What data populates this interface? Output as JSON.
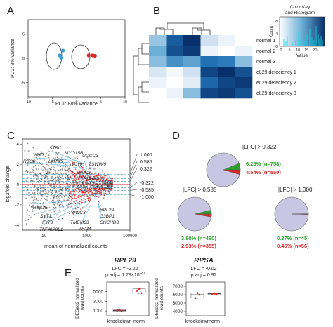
{
  "panels": {
    "a": "A",
    "b": "B",
    "c": "C",
    "d": "D",
    "e": "E"
  },
  "panel_a": {
    "xlabel": "PC1: 88% variance",
    "ylabel": "PC2: 8% variance",
    "xticks": [
      "-10",
      "-5",
      "0",
      "5",
      "10"
    ],
    "yticks": [
      "5",
      "0",
      "-5"
    ],
    "colors": {
      "blue": "#3b9ed6",
      "red": "#d62728"
    },
    "chart_data": {
      "type": "scatter",
      "xlabel": "PC1: 88% variance",
      "ylabel": "PC2: 8% variance",
      "xlim": [
        -10,
        10
      ],
      "ylim": [
        -8,
        8
      ],
      "series": [
        {
          "points": [
            [
              -3.5,
              0.6
            ],
            [
              -2.8,
              1.6
            ],
            [
              -3.2,
              0.1
            ]
          ],
          "color": "#3b9ed6"
        },
        {
          "points": [
            [
              2.5,
              0.6
            ],
            [
              3.3,
              0.6
            ],
            [
              3.8,
              0.5
            ]
          ],
          "color": "#d62728"
        }
      ]
    }
  },
  "panel_b": {
    "row_labels": [
      "normal 1",
      "normal 2",
      "normal 3",
      "eL29 defeciency 1",
      "eL29 defeciency 2",
      "eL29 defeciency 3"
    ],
    "color_key": {
      "title_line1": "Color Key",
      "title_line2": "and Histogram",
      "ylabel": "Count",
      "xlabel": "Value",
      "xticks": [
        "0",
        "5",
        "10",
        "15",
        "20"
      ],
      "yticks": [
        "0",
        "4",
        "8"
      ]
    },
    "chart_data": {
      "type": "heatmap",
      "rows": [
        "normal 1",
        "normal 2",
        "normal 3",
        "eL29 defeciency 1",
        "eL29 defeciency 2",
        "eL29 defeciency 3"
      ],
      "values": [
        [
          9,
          20,
          24,
          5,
          2,
          0
        ],
        [
          12,
          21,
          23,
          2,
          0,
          2
        ],
        [
          10,
          15,
          13,
          18,
          17,
          10
        ],
        [
          4,
          1,
          5,
          22,
          24,
          21
        ],
        [
          2,
          0,
          3,
          19,
          22,
          23
        ],
        [
          0,
          2,
          10,
          22,
          23,
          21
        ]
      ]
    }
  },
  "panel_c": {
    "ylabel": "log2fold change",
    "xlabel": "mean of normalized counts",
    "xticks": [
      "10",
      "1000",
      "100000"
    ],
    "yticks": [
      "4",
      "2",
      "0",
      "-2",
      "-4"
    ],
    "threshold_labels": [
      "1.000",
      "0.585",
      "0.322",
      "-0.322",
      "-0.585",
      "-1.000"
    ],
    "gene_labels": [
      "STRC",
      "IRF7",
      "LMTK3",
      "MYO15B",
      "REC8",
      "UQCC3",
      "TCHH",
      "ZSWIM9",
      "EMC6",
      "PCNX3",
      "IRSS35",
      "SYT1",
      "IFIT3",
      "TNFAIP8L1",
      "WWC3",
      "TMEM63",
      "TFAM",
      "RPL29",
      "G3BP1",
      "CHCHD3"
    ],
    "chart_data": {
      "type": "scatter",
      "xlabel": "mean of normalized counts",
      "ylabel": "log2fold change",
      "xscale": "log",
      "xlim": [
        1,
        100000
      ],
      "ylim": [
        -4.5,
        4.5
      ],
      "hlines": [
        1.0,
        0.585,
        0.322,
        -0.322,
        -0.585,
        -1.0
      ]
    }
  },
  "panel_d": {
    "chart_data": [
      {
        "type": "pie",
        "title": "|LFC| > 0.322",
        "slices": [
          {
            "label": "6.25% (n=758)",
            "value": 6.25,
            "color": "#2ca02c"
          },
          {
            "label": "4.54% (n=550)",
            "value": 4.54,
            "color": "#d62728"
          },
          {
            "label": "",
            "value": 89.21,
            "color": "#c9c6e3"
          }
        ]
      },
      {
        "type": "pie",
        "title": "|LFC| > 0.585",
        "slices": [
          {
            "label": "3.80% (n=460)",
            "value": 3.8,
            "color": "#2ca02c"
          },
          {
            "label": "2.93% (n=355)",
            "value": 2.93,
            "color": "#d62728"
          },
          {
            "label": "",
            "value": 93.27,
            "color": "#c9c6e3"
          }
        ]
      },
      {
        "type": "pie",
        "title": "|LFC| > 1.000",
        "slices": [
          {
            "label": "0.37% (n=45)",
            "value": 0.37,
            "color": "#2ca02c"
          },
          {
            "label": "0.46% (n=56)",
            "value": 0.46,
            "color": "#d62728"
          },
          {
            "label": "",
            "value": 99.17,
            "color": "#c9c6e3"
          }
        ]
      }
    ]
  },
  "panel_e": {
    "ylabel_lines": [
      "DESeq2 normalized",
      "read counts"
    ],
    "chart_data": [
      {
        "type": "box",
        "title": "RPL29",
        "stat_lfc": "LFC = -2.22",
        "stat_padj": "p adj = 1.79×10",
        "padj_exp": "-20",
        "categories": [
          "knockdown",
          "norm"
        ],
        "yticks": [
          "1000",
          "3000",
          "5000"
        ],
        "ylim": [
          0,
          7000
        ],
        "values": [
          [
            1100,
            1250,
            1000
          ],
          [
            5200,
            5600,
            4700
          ]
        ]
      },
      {
        "type": "box",
        "title": "RPSA",
        "stat_lfc": "LFC = -0.02",
        "stat_padj": "p adj = 0.92",
        "categories": [
          "knockdown",
          "norm"
        ],
        "yticks": [
          "4000",
          "5000",
          "6000",
          "7000"
        ],
        "ylim": [
          3500,
          7500
        ],
        "values": [
          [
            5600,
            6200,
            6000
          ],
          [
            6100,
            6150,
            6050
          ]
        ]
      }
    ]
  }
}
